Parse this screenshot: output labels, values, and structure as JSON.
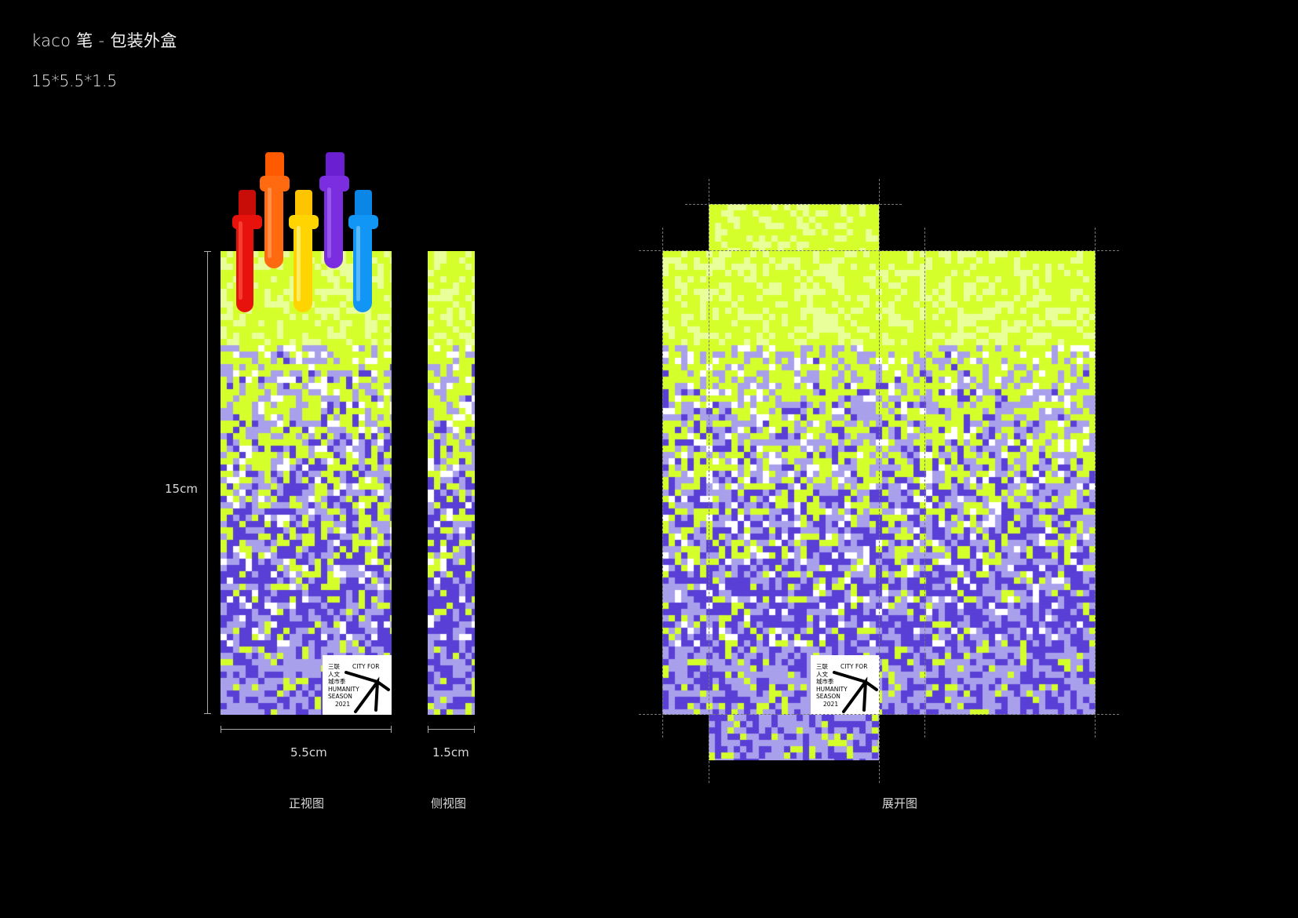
{
  "header": {
    "title": "kaco 笔 - 包装外盒",
    "size_spec": "15*5.5*1.5"
  },
  "dimensions": {
    "height": "15cm",
    "front_width": "5.5cm",
    "side_width": "1.5cm"
  },
  "views": {
    "front": "正视图",
    "side": "侧视图",
    "unfolded": "展开图"
  },
  "logo": {
    "cn_line1": "三联",
    "cn_line2": "人文",
    "cn_line3": "城市季",
    "en_line1": "CITY FOR",
    "en_line2": "HUMANITY",
    "en_line3": "SEASON",
    "year": "2021"
  },
  "colors": {
    "lime": "#d4ff2a",
    "lime_light": "#e8ff9a",
    "purple": "#5a3fd6",
    "lavender": "#a9a0ec",
    "pen_red": "#e8120c",
    "pen_orange": "#ff6a10",
    "pen_yellow": "#ffd400",
    "pen_purple": "#7a2ee0",
    "pen_blue": "#1296f5"
  },
  "pens": [
    {
      "color": "pen_red"
    },
    {
      "color": "pen_orange"
    },
    {
      "color": "pen_yellow"
    },
    {
      "color": "pen_purple"
    },
    {
      "color": "pen_blue"
    }
  ]
}
